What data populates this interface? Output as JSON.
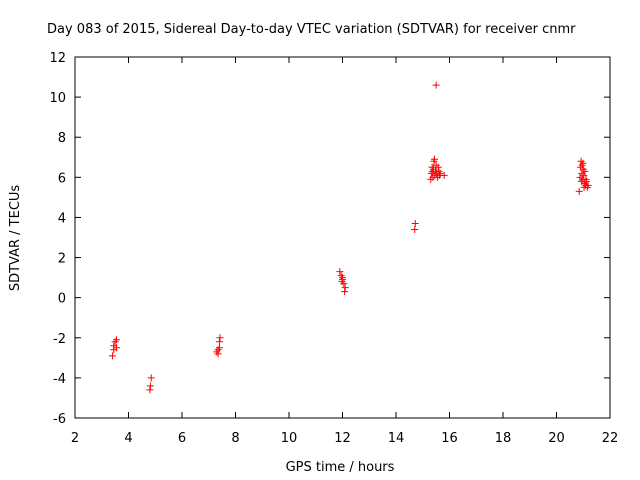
{
  "chart_data": {
    "type": "scatter",
    "title": "Day 083 of 2015, Sidereal Day-to-day VTEC variation (SDTVAR) for receiver cnmr",
    "xlabel": "GPS time / hours",
    "ylabel": "SDTVAR / TECUs",
    "xlim": [
      2,
      22
    ],
    "ylim": [
      -6,
      12
    ],
    "xticks": [
      "2",
      "4",
      "6",
      "8",
      "10",
      "12",
      "14",
      "16",
      "18",
      "20",
      "22"
    ],
    "yticks": [
      "-6",
      "-4",
      "-2",
      "0",
      "2",
      "4",
      "6",
      "8",
      "10",
      "12"
    ],
    "grid": false,
    "marker": "+",
    "marker_color": "#ff0000",
    "series": [
      {
        "name": "SDTVAR",
        "points": [
          [
            3.4,
            -2.9
          ],
          [
            3.45,
            -2.6
          ],
          [
            3.45,
            -2.4
          ],
          [
            3.5,
            -2.2
          ],
          [
            3.55,
            -2.5
          ],
          [
            3.55,
            -2.1
          ],
          [
            4.8,
            -4.6
          ],
          [
            4.82,
            -4.4
          ],
          [
            4.85,
            -4.0
          ],
          [
            7.3,
            -2.7
          ],
          [
            7.35,
            -2.6
          ],
          [
            7.4,
            -2.5
          ],
          [
            7.4,
            -2.2
          ],
          [
            7.42,
            -2.0
          ],
          [
            7.35,
            -2.8
          ],
          [
            11.9,
            1.3
          ],
          [
            11.95,
            1.1
          ],
          [
            12.0,
            0.9
          ],
          [
            12.05,
            0.7
          ],
          [
            12.0,
            1.0
          ],
          [
            12.1,
            0.5
          ],
          [
            12.08,
            0.3
          ],
          [
            11.98,
            0.8
          ],
          [
            14.7,
            3.4
          ],
          [
            14.72,
            3.7
          ],
          [
            15.3,
            5.9
          ],
          [
            15.32,
            6.2
          ],
          [
            15.35,
            6.5
          ],
          [
            15.38,
            6.0
          ],
          [
            15.4,
            6.4
          ],
          [
            15.42,
            6.8
          ],
          [
            15.45,
            6.1
          ],
          [
            15.48,
            6.3
          ],
          [
            15.5,
            6.6
          ],
          [
            15.52,
            6.2
          ],
          [
            15.55,
            6.0
          ],
          [
            15.58,
            6.5
          ],
          [
            15.6,
            6.3
          ],
          [
            15.62,
            6.1
          ],
          [
            15.65,
            6.2
          ],
          [
            15.8,
            6.1
          ],
          [
            15.44,
            6.9
          ],
          [
            15.36,
            6.3
          ],
          [
            15.5,
            10.6
          ],
          [
            20.85,
            5.3
          ],
          [
            20.88,
            6.0
          ],
          [
            20.9,
            6.5
          ],
          [
            20.92,
            6.8
          ],
          [
            20.93,
            5.8
          ],
          [
            20.95,
            6.2
          ],
          [
            20.96,
            6.6
          ],
          [
            20.98,
            5.9
          ],
          [
            21.0,
            6.4
          ],
          [
            21.02,
            6.1
          ],
          [
            21.04,
            5.7
          ],
          [
            21.06,
            6.3
          ],
          [
            21.08,
            5.6
          ],
          [
            21.1,
            5.9
          ],
          [
            21.12,
            5.8
          ],
          [
            21.15,
            5.5
          ],
          [
            21.18,
            5.6
          ],
          [
            20.99,
            6.7
          ],
          [
            21.03,
            5.5
          ]
        ]
      }
    ]
  }
}
